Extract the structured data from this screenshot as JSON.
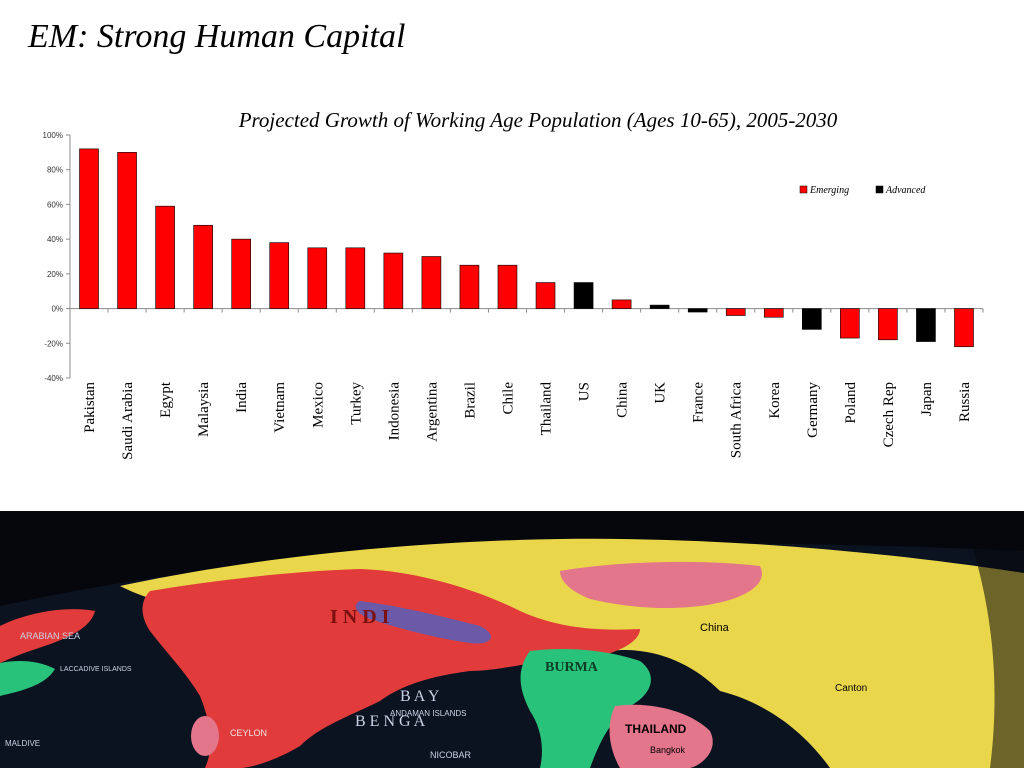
{
  "slide": {
    "title": "EM: Strong Human Capital"
  },
  "colors": {
    "emerging": "#ff0000",
    "advanced": "#000000",
    "axis": "#8c8c8c",
    "ocean": "#05070c",
    "land_green": "#28c27a",
    "land_red": "#e23b3b",
    "land_yellow": "#e9d64a",
    "land_pink": "#e4768c",
    "land_purple": "#6a5aa8"
  },
  "chart_data": {
    "type": "bar",
    "title": "Projected Growth of Working Age Population (Ages 10-65), 2005-2030",
    "xlabel": "",
    "ylabel": "",
    "ylim": [
      -40,
      100
    ],
    "yticks": [
      -40,
      -20,
      0,
      20,
      40,
      60,
      80,
      100
    ],
    "ytick_labels": [
      "-40%",
      "-20%",
      "0%",
      "20%",
      "40%",
      "60%",
      "80%",
      "100%"
    ],
    "grid": false,
    "legend_position": "top-right",
    "categories": [
      "Pakistan",
      "Saudi Arabia",
      "Egypt",
      "Malaysia",
      "India",
      "Vietnam",
      "Mexico",
      "Turkey",
      "Indonesia",
      "Argentina",
      "Brazil",
      "Chile",
      "Thailand",
      "US",
      "China",
      "UK",
      "France",
      "South Africa",
      "Korea",
      "Germany",
      "Poland",
      "Czech Rep",
      "Japan",
      "Russia"
    ],
    "values": [
      92,
      90,
      59,
      48,
      40,
      38,
      35,
      35,
      32,
      30,
      25,
      25,
      15,
      15,
      5,
      2,
      -2,
      -4,
      -5,
      -12,
      -17,
      -18,
      -19,
      -22
    ],
    "group": [
      "Emerging",
      "Emerging",
      "Emerging",
      "Emerging",
      "Emerging",
      "Emerging",
      "Emerging",
      "Emerging",
      "Emerging",
      "Emerging",
      "Emerging",
      "Emerging",
      "Emerging",
      "Advanced",
      "Emerging",
      "Advanced",
      "Advanced",
      "Emerging",
      "Emerging",
      "Advanced",
      "Emerging",
      "Emerging",
      "Advanced",
      "Emerging"
    ],
    "legend": [
      {
        "name": "Emerging",
        "color": "#ff0000"
      },
      {
        "name": "Advanced",
        "color": "#000000"
      }
    ]
  },
  "photo": {
    "visible_map_labels": [
      "I N D I",
      "B A Y",
      "B E N G A",
      "BURMA",
      "THAILAND",
      "ANDAMAN ISLANDS",
      "CEYLON",
      "NICOBAR",
      "MALDIVE",
      "ARABIAN SEA",
      "LACCADIVE ISLANDS",
      "Bangkok",
      "Canton",
      "China"
    ]
  }
}
